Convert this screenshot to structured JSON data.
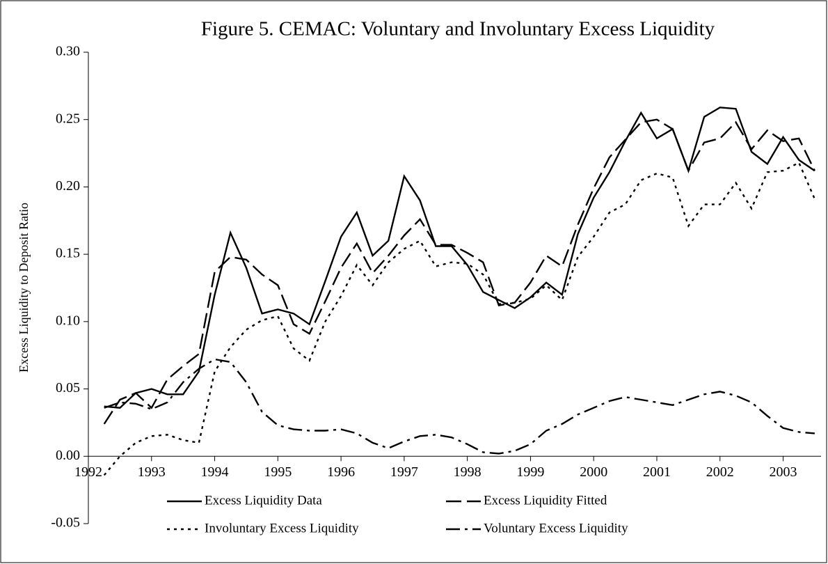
{
  "chart_data": {
    "type": "line",
    "title": "Figure 5. CEMAC: Voluntary and Involuntary Excess Liquidity",
    "y_label": "Excess Liquidity to Deposit Ratio",
    "x": [
      1992.25,
      1992.5,
      1992.75,
      1993,
      1993.25,
      1993.5,
      1993.75,
      1994,
      1994.25,
      1994.5,
      1994.75,
      1995,
      1995.25,
      1995.5,
      1995.75,
      1996,
      1996.25,
      1996.5,
      1996.75,
      1997,
      1997.25,
      1997.5,
      1997.75,
      1998,
      1998.25,
      1998.5,
      1998.75,
      1999,
      1999.25,
      1999.5,
      1999.75,
      2000,
      2000.25,
      2000.5,
      2000.75,
      2001,
      2001.25,
      2001.5,
      2001.75,
      2002,
      2002.25,
      2002.5,
      2002.75,
      2003,
      2003.25,
      2003.5
    ],
    "series": [
      {
        "name": "Excess Liquidity Data",
        "color": "#000000",
        "dash": "solid",
        "values": [
          0.037,
          0.036,
          0.047,
          0.05,
          0.046,
          0.046,
          0.063,
          0.12,
          0.166,
          0.14,
          0.106,
          0.109,
          0.106,
          0.098,
          0.13,
          0.163,
          0.181,
          0.149,
          0.16,
          0.208,
          0.19,
          0.156,
          0.156,
          0.142,
          0.122,
          0.116,
          0.11,
          0.118,
          0.129,
          0.12,
          0.165,
          0.192,
          0.211,
          0.234,
          0.255,
          0.236,
          0.243,
          0.212,
          0.252,
          0.259,
          0.258,
          0.226,
          0.217,
          0.237,
          0.22,
          0.212
        ]
      },
      {
        "name": "Excess Liquidity Fitted",
        "color": "#000000",
        "dash": "dash",
        "values": [
          0.024,
          0.042,
          0.047,
          0.036,
          0.057,
          0.067,
          0.076,
          0.137,
          0.148,
          0.146,
          0.135,
          0.127,
          0.098,
          0.091,
          0.115,
          0.14,
          0.158,
          0.136,
          0.149,
          0.164,
          0.176,
          0.157,
          0.157,
          0.151,
          0.144,
          0.112,
          0.114,
          0.129,
          0.149,
          0.141,
          0.172,
          0.199,
          0.222,
          0.235,
          0.248,
          0.25,
          0.243,
          0.212,
          0.233,
          0.236,
          0.248,
          0.228,
          0.242,
          0.234,
          0.236,
          0.212
        ]
      },
      {
        "name": "Involuntary Excess Liquidity",
        "color": "#000000",
        "dash": "dot",
        "values": [
          -0.014,
          0.0,
          0.01,
          0.015,
          0.016,
          0.012,
          0.01,
          0.063,
          0.081,
          0.094,
          0.101,
          0.104,
          0.08,
          0.071,
          0.1,
          0.119,
          0.142,
          0.127,
          0.144,
          0.154,
          0.16,
          0.141,
          0.144,
          0.143,
          0.135,
          0.113,
          0.114,
          0.117,
          0.127,
          0.116,
          0.148,
          0.163,
          0.181,
          0.187,
          0.205,
          0.21,
          0.207,
          0.171,
          0.187,
          0.187,
          0.203,
          0.184,
          0.211,
          0.212,
          0.218,
          0.191
        ]
      },
      {
        "name": "Voluntary Excess Liquidity",
        "color": "#000000",
        "dash": "dashdot",
        "values": [
          0.036,
          0.04,
          0.039,
          0.035,
          0.04,
          0.055,
          0.065,
          0.072,
          0.07,
          0.055,
          0.033,
          0.023,
          0.02,
          0.019,
          0.019,
          0.02,
          0.017,
          0.01,
          0.006,
          0.011,
          0.015,
          0.016,
          0.014,
          0.009,
          0.003,
          0.002,
          0.004,
          0.009,
          0.019,
          0.024,
          0.031,
          0.036,
          0.041,
          0.044,
          0.042,
          0.04,
          0.038,
          0.042,
          0.046,
          0.048,
          0.045,
          0.04,
          0.03,
          0.021,
          0.018,
          0.017
        ]
      }
    ],
    "xlim": [
      1992,
      2003.6
    ],
    "xticks": [
      1992,
      1993,
      1994,
      1995,
      1996,
      1997,
      1998,
      1999,
      2000,
      2001,
      2002,
      2003
    ],
    "ylim": [
      -0.05,
      0.3
    ],
    "yticks": [
      -0.05,
      {
        "value": 0,
        "label": "0.00"
      },
      0.05,
      {
        "value": 0.1,
        "label": "0.10"
      },
      0.15,
      {
        "value": 0.2,
        "label": "0.20"
      },
      0.25,
      {
        "value": 0.3,
        "label": "0.30"
      }
    ]
  }
}
